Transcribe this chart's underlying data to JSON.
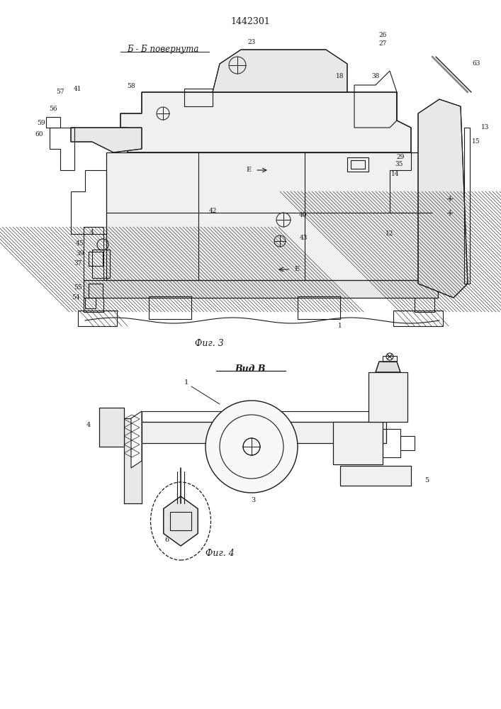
{
  "patent_number": "1442301",
  "fig3_label": "Б - Б повернута",
  "fig3_caption": "Фиг. 3",
  "fig4_label": "Вид В",
  "fig4_caption": "Фиг. 4",
  "bg_color": "#f5f5f0",
  "line_color": "#1a1a1a",
  "hatch_color": "#1a1a1a"
}
